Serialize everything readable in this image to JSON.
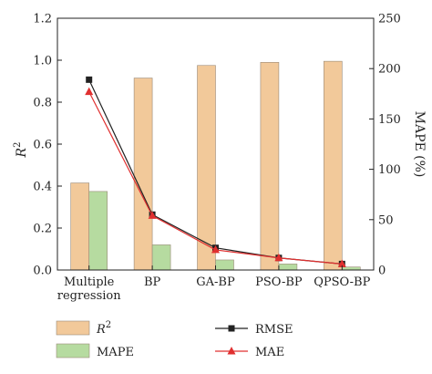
{
  "chart_data": {
    "type": "bar",
    "categories": [
      "Multiple regression",
      "BP",
      "GA-BP",
      "PSO-BP",
      "QPSO-BP"
    ],
    "category_lines": [
      [
        "Multiple",
        "regression"
      ],
      [
        "BP"
      ],
      [
        "GA-BP"
      ],
      [
        "PSO-BP"
      ],
      [
        "QPSO-BP"
      ]
    ],
    "bar_series": [
      {
        "name": "R2",
        "axis": "left",
        "color": "#f2c99a",
        "values": [
          0.415,
          0.915,
          0.975,
          0.99,
          0.995
        ]
      },
      {
        "name": "MAPE",
        "axis": "right",
        "color": "#b6dba0",
        "values": [
          78,
          25,
          10,
          6,
          3
        ]
      }
    ],
    "line_series": [
      {
        "name": "RMSE",
        "axis": "right",
        "color": "#222222",
        "marker": "square",
        "values": [
          189,
          55,
          22,
          12,
          6
        ]
      },
      {
        "name": "MAE",
        "axis": "right",
        "color": "#e03030",
        "marker": "triangle",
        "values": [
          177,
          54,
          20,
          12,
          6
        ]
      }
    ],
    "y_left": {
      "label": "R2",
      "label_base": "R",
      "label_sup": "2",
      "range": [
        0,
        1.2
      ],
      "ticks": [
        "0.0",
        "0.2",
        "0.4",
        "0.6",
        "0.8",
        "1.0",
        "1.2"
      ]
    },
    "y_right": {
      "label": "MAPE (%)",
      "range": [
        0,
        250
      ],
      "ticks": [
        "0",
        "50",
        "100",
        "150",
        "200",
        "250"
      ]
    },
    "legend": [
      {
        "name": "R2",
        "label_base": "R",
        "label_sup": "2",
        "kind": "bar",
        "color": "#f2c99a"
      },
      {
        "name": "MAPE",
        "kind": "bar",
        "color": "#b6dba0"
      },
      {
        "name": "RMSE",
        "kind": "line",
        "color": "#222222",
        "marker": "square"
      },
      {
        "name": "MAE",
        "kind": "line",
        "color": "#e03030",
        "marker": "triangle"
      }
    ],
    "legend_position": "bottom"
  }
}
